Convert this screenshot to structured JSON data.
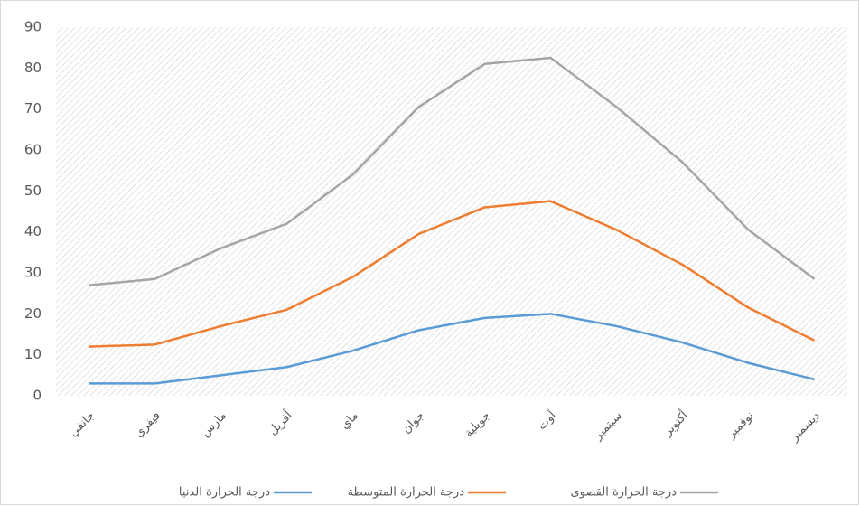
{
  "chart_data": {
    "type": "line",
    "categories": [
      "جانفي",
      "فيفري",
      "مارس",
      "أفريل",
      "ماي",
      "جوان",
      "جويلية",
      "أوت",
      "سبتمبر",
      "أكتوبر",
      "نوفمبر",
      "ديسمبر"
    ],
    "series": [
      {
        "name": "درجة الحرارة الدنيا",
        "color": "#5b9bd5",
        "values": [
          3,
          3,
          5,
          7,
          11,
          16,
          19,
          20,
          17,
          13,
          8,
          4
        ]
      },
      {
        "name": "درجة الحرارة المتوسطة",
        "color": "#ed7d31",
        "values": [
          12,
          12.5,
          17,
          21,
          29,
          39.5,
          46,
          47.5,
          40.5,
          32,
          21.5,
          13.5
        ]
      },
      {
        "name": "درجة الحرارة القصوى",
        "color": "#a5a5a5",
        "values": [
          27,
          28.5,
          36,
          42,
          54,
          70.5,
          81,
          82.5,
          70.5,
          57,
          40.5,
          28.5
        ]
      }
    ],
    "ylim": [
      0,
      90
    ],
    "yticks": [
      0,
      10,
      20,
      30,
      40,
      50,
      60,
      70,
      80,
      90
    ],
    "grid": false,
    "legend": "bottom"
  }
}
